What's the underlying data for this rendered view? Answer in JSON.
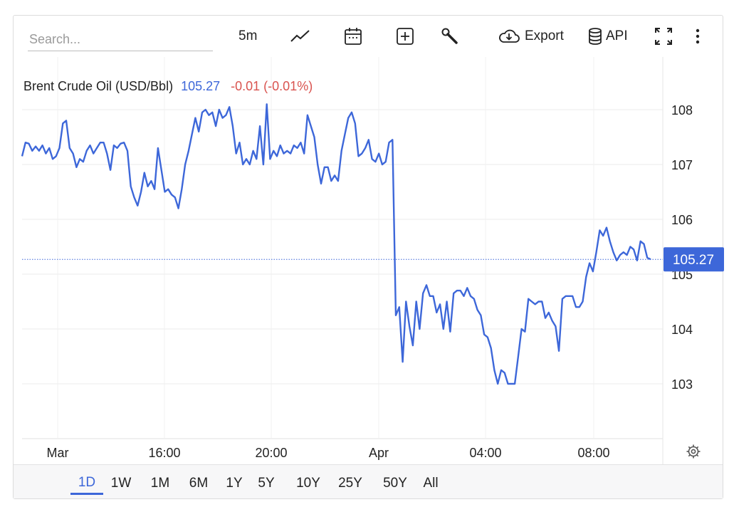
{
  "toolbar": {
    "search_placeholder": "Search...",
    "interval_label": "5m",
    "export_label": "Export",
    "api_label": "API",
    "icons": [
      "line-chart-icon",
      "calendar-icon",
      "plus-box-icon",
      "wrench-icon",
      "cloud-download-icon",
      "database-icon",
      "fullscreen-icon",
      "more-vertical-icon"
    ]
  },
  "legend": {
    "name": "Brent Crude Oil (USD/Bbl)",
    "price": "105.27",
    "change": "-0.01 (-0.01%)",
    "price_color": "#3d67d9",
    "change_color": "#d9534f"
  },
  "price_tag": "105.27",
  "range_buttons": [
    "1D",
    "1W",
    "1M",
    "6M",
    "1Y",
    "5Y",
    "10Y",
    "25Y",
    "50Y",
    "All"
  ],
  "active_range": "1D",
  "chart_data": {
    "type": "line",
    "title": "",
    "xlabel": "",
    "ylabel": "",
    "x_ticks": [
      "Mar",
      "16:00",
      "20:00",
      "Apr",
      "04:00",
      "08:00"
    ],
    "y_ticks": [
      108,
      107,
      106,
      105,
      104,
      103
    ],
    "ylim": [
      102,
      109.2
    ],
    "last_value": 105.27,
    "line_color": "#3d67d9",
    "grid": true,
    "series": [
      {
        "name": "Brent Crude Oil (USD/Bbl)",
        "values": [
          107.15,
          107.4,
          107.38,
          107.25,
          107.33,
          107.25,
          107.35,
          107.2,
          107.3,
          107.1,
          107.15,
          107.3,
          107.75,
          107.8,
          107.3,
          107.2,
          106.95,
          107.1,
          107.05,
          107.25,
          107.35,
          107.2,
          107.3,
          107.4,
          107.4,
          107.2,
          106.9,
          107.35,
          107.3,
          107.38,
          107.4,
          107.25,
          106.6,
          106.4,
          106.25,
          106.5,
          106.85,
          106.6,
          106.7,
          106.55,
          107.3,
          106.9,
          106.5,
          106.55,
          106.45,
          106.4,
          106.2,
          106.55,
          107.0,
          107.25,
          107.55,
          107.85,
          107.6,
          107.95,
          108.0,
          107.9,
          107.95,
          107.7,
          108.0,
          107.85,
          107.9,
          108.05,
          107.7,
          107.2,
          107.4,
          107.0,
          107.1,
          107.0,
          107.25,
          107.1,
          107.7,
          107.0,
          108.1,
          107.1,
          107.25,
          107.15,
          107.35,
          107.2,
          107.25,
          107.2,
          107.35,
          107.3,
          107.4,
          107.2,
          107.9,
          107.7,
          107.5,
          107.0,
          106.65,
          106.95,
          106.95,
          106.7,
          106.8,
          106.7,
          107.25,
          107.55,
          107.85,
          107.95,
          107.75,
          107.15,
          107.2,
          107.3,
          107.45,
          107.1,
          107.05,
          107.2,
          107.0,
          107.05,
          107.4,
          107.45,
          104.25,
          104.4,
          103.4,
          104.5,
          104.05,
          103.7,
          104.5,
          104.0,
          104.65,
          104.8,
          104.6,
          104.6,
          104.3,
          104.45,
          104.0,
          104.5,
          103.95,
          104.65,
          104.7,
          104.7,
          104.6,
          104.75,
          104.6,
          104.55,
          104.35,
          104.25,
          103.9,
          103.85,
          103.65,
          103.25,
          103.0,
          103.25,
          103.2,
          103.0,
          103.0,
          103.0,
          103.5,
          104.0,
          103.95,
          104.55,
          104.5,
          104.45,
          104.5,
          104.5,
          104.2,
          104.3,
          104.15,
          104.05,
          103.6,
          104.55,
          104.6,
          104.6,
          104.6,
          104.4,
          104.4,
          104.5,
          104.95,
          105.2,
          105.05,
          105.4,
          105.8,
          105.7,
          105.85,
          105.6,
          105.4,
          105.25,
          105.35,
          105.4,
          105.35,
          105.5,
          105.45,
          105.25,
          105.6,
          105.55,
          105.3,
          105.27
        ]
      }
    ]
  }
}
